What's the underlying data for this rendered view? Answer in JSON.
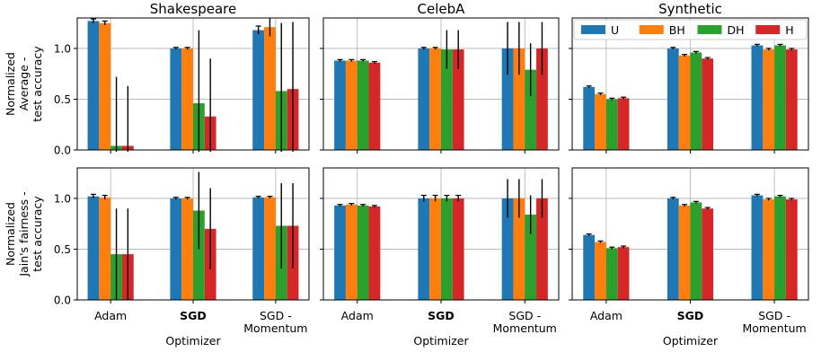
{
  "figure": {
    "row_ylabels": [
      [
        "Normalized",
        "Average -",
        "test accuracy"
      ],
      [
        "Normalized",
        "Jain's fairness -",
        "test accuracy"
      ]
    ],
    "xlabel": "Optimizer",
    "legend_entries": [
      "U",
      "BH",
      "DH",
      "H"
    ],
    "colors": {
      "U": "#1f77b4",
      "BH": "#ff7f0e",
      "DH": "#2ca02c",
      "H": "#d62728"
    },
    "bold_category": "SGD"
  },
  "chart_data": [
    {
      "type": "bar",
      "title": "Shakespeare",
      "ylabel": "Normalized Average - test accuracy",
      "xlabel": "",
      "categories": [
        "Adam",
        "SGD",
        "SGD -\nMomentum"
      ],
      "ylim": [
        0,
        1.3
      ],
      "yticks": [
        0.0,
        0.5,
        1.0
      ],
      "grid": true,
      "series": [
        {
          "name": "U",
          "values": [
            1.27,
            1.0,
            1.18
          ],
          "err": [
            0.02,
            0.01,
            0.04
          ]
        },
        {
          "name": "BH",
          "values": [
            1.25,
            1.0,
            1.21
          ],
          "err": [
            0.02,
            0.01,
            0.09
          ]
        },
        {
          "name": "DH",
          "values": [
            0.04,
            0.46,
            0.58
          ],
          "err": [
            0.68,
            0.72,
            0.67
          ]
        },
        {
          "name": "H",
          "values": [
            0.04,
            0.33,
            0.6
          ],
          "err": [
            0.59,
            0.57,
            0.66
          ]
        }
      ]
    },
    {
      "type": "bar",
      "title": "CelebA",
      "ylabel": "",
      "xlabel": "",
      "categories": [
        "Adam",
        "SGD",
        "SGD -\nMomentum"
      ],
      "ylim": [
        0,
        1.3
      ],
      "yticks": [
        0.0,
        0.5,
        1.0
      ],
      "grid": true,
      "series": [
        {
          "name": "U",
          "values": [
            0.88,
            1.0,
            1.0
          ],
          "err": [
            0.01,
            0.01,
            0.26
          ]
        },
        {
          "name": "BH",
          "values": [
            0.88,
            1.0,
            1.0
          ],
          "err": [
            0.01,
            0.01,
            0.26
          ]
        },
        {
          "name": "DH",
          "values": [
            0.88,
            0.99,
            0.79
          ],
          "err": [
            0.01,
            0.19,
            0.26
          ]
        },
        {
          "name": "H",
          "values": [
            0.86,
            0.99,
            1.0
          ],
          "err": [
            0.01,
            0.19,
            0.26
          ]
        }
      ]
    },
    {
      "type": "bar",
      "title": "Synthetic",
      "ylabel": "",
      "xlabel": "",
      "categories": [
        "Adam",
        "SGD",
        "SGD -\nMomentum"
      ],
      "ylim": [
        0,
        1.3
      ],
      "yticks": [
        0.0,
        0.5,
        1.0
      ],
      "grid": true,
      "legend": "top",
      "series": [
        {
          "name": "U",
          "values": [
            0.62,
            1.0,
            1.03
          ],
          "err": [
            0.01,
            0.01,
            0.01
          ]
        },
        {
          "name": "BH",
          "values": [
            0.55,
            0.93,
            0.99
          ],
          "err": [
            0.01,
            0.01,
            0.01
          ]
        },
        {
          "name": "DH",
          "values": [
            0.5,
            0.96,
            1.03
          ],
          "err": [
            0.01,
            0.01,
            0.01
          ]
        },
        {
          "name": "H",
          "values": [
            0.51,
            0.9,
            0.99
          ],
          "err": [
            0.01,
            0.01,
            0.01
          ]
        }
      ]
    },
    {
      "type": "bar",
      "title": "",
      "ylabel": "Normalized Jain's fairness - test accuracy",
      "xlabel": "Optimizer",
      "categories": [
        "Adam",
        "SGD",
        "SGD -\nMomentum"
      ],
      "ylim": [
        0,
        1.3
      ],
      "yticks": [
        0.0,
        0.5,
        1.0
      ],
      "grid": true,
      "series": [
        {
          "name": "U",
          "values": [
            1.02,
            1.0,
            1.01
          ],
          "err": [
            0.02,
            0.01,
            0.01
          ]
        },
        {
          "name": "BH",
          "values": [
            1.01,
            1.0,
            1.01
          ],
          "err": [
            0.02,
            0.01,
            0.01
          ]
        },
        {
          "name": "DH",
          "values": [
            0.45,
            0.88,
            0.73
          ],
          "err": [
            0.45,
            0.38,
            0.42
          ]
        },
        {
          "name": "H",
          "values": [
            0.45,
            0.7,
            0.73
          ],
          "err": [
            0.45,
            0.4,
            0.42
          ]
        }
      ]
    },
    {
      "type": "bar",
      "title": "",
      "ylabel": "",
      "xlabel": "Optimizer",
      "categories": [
        "Adam",
        "SGD",
        "SGD -\nMomentum"
      ],
      "ylim": [
        0,
        1.3
      ],
      "yticks": [
        0.0,
        0.5,
        1.0
      ],
      "grid": true,
      "series": [
        {
          "name": "U",
          "values": [
            0.93,
            1.0,
            1.0
          ],
          "err": [
            0.01,
            0.03,
            0.19
          ]
        },
        {
          "name": "BH",
          "values": [
            0.94,
            1.0,
            1.0
          ],
          "err": [
            0.01,
            0.03,
            0.19
          ]
        },
        {
          "name": "DH",
          "values": [
            0.93,
            1.0,
            0.84
          ],
          "err": [
            0.01,
            0.03,
            0.19
          ]
        },
        {
          "name": "H",
          "values": [
            0.92,
            1.0,
            1.0
          ],
          "err": [
            0.01,
            0.03,
            0.19
          ]
        }
      ]
    },
    {
      "type": "bar",
      "title": "",
      "ylabel": "",
      "xlabel": "Optimizer",
      "categories": [
        "Adam",
        "SGD",
        "SGD -\nMomentum"
      ],
      "ylim": [
        0,
        1.3
      ],
      "yticks": [
        0.0,
        0.5,
        1.0
      ],
      "grid": true,
      "series": [
        {
          "name": "U",
          "values": [
            0.64,
            1.0,
            1.03
          ],
          "err": [
            0.01,
            0.01,
            0.01
          ]
        },
        {
          "name": "BH",
          "values": [
            0.57,
            0.93,
            0.99
          ],
          "err": [
            0.01,
            0.01,
            0.01
          ]
        },
        {
          "name": "DH",
          "values": [
            0.51,
            0.96,
            1.02
          ],
          "err": [
            0.01,
            0.01,
            0.01
          ]
        },
        {
          "name": "H",
          "values": [
            0.52,
            0.9,
            0.99
          ],
          "err": [
            0.01,
            0.01,
            0.01
          ]
        }
      ]
    }
  ]
}
